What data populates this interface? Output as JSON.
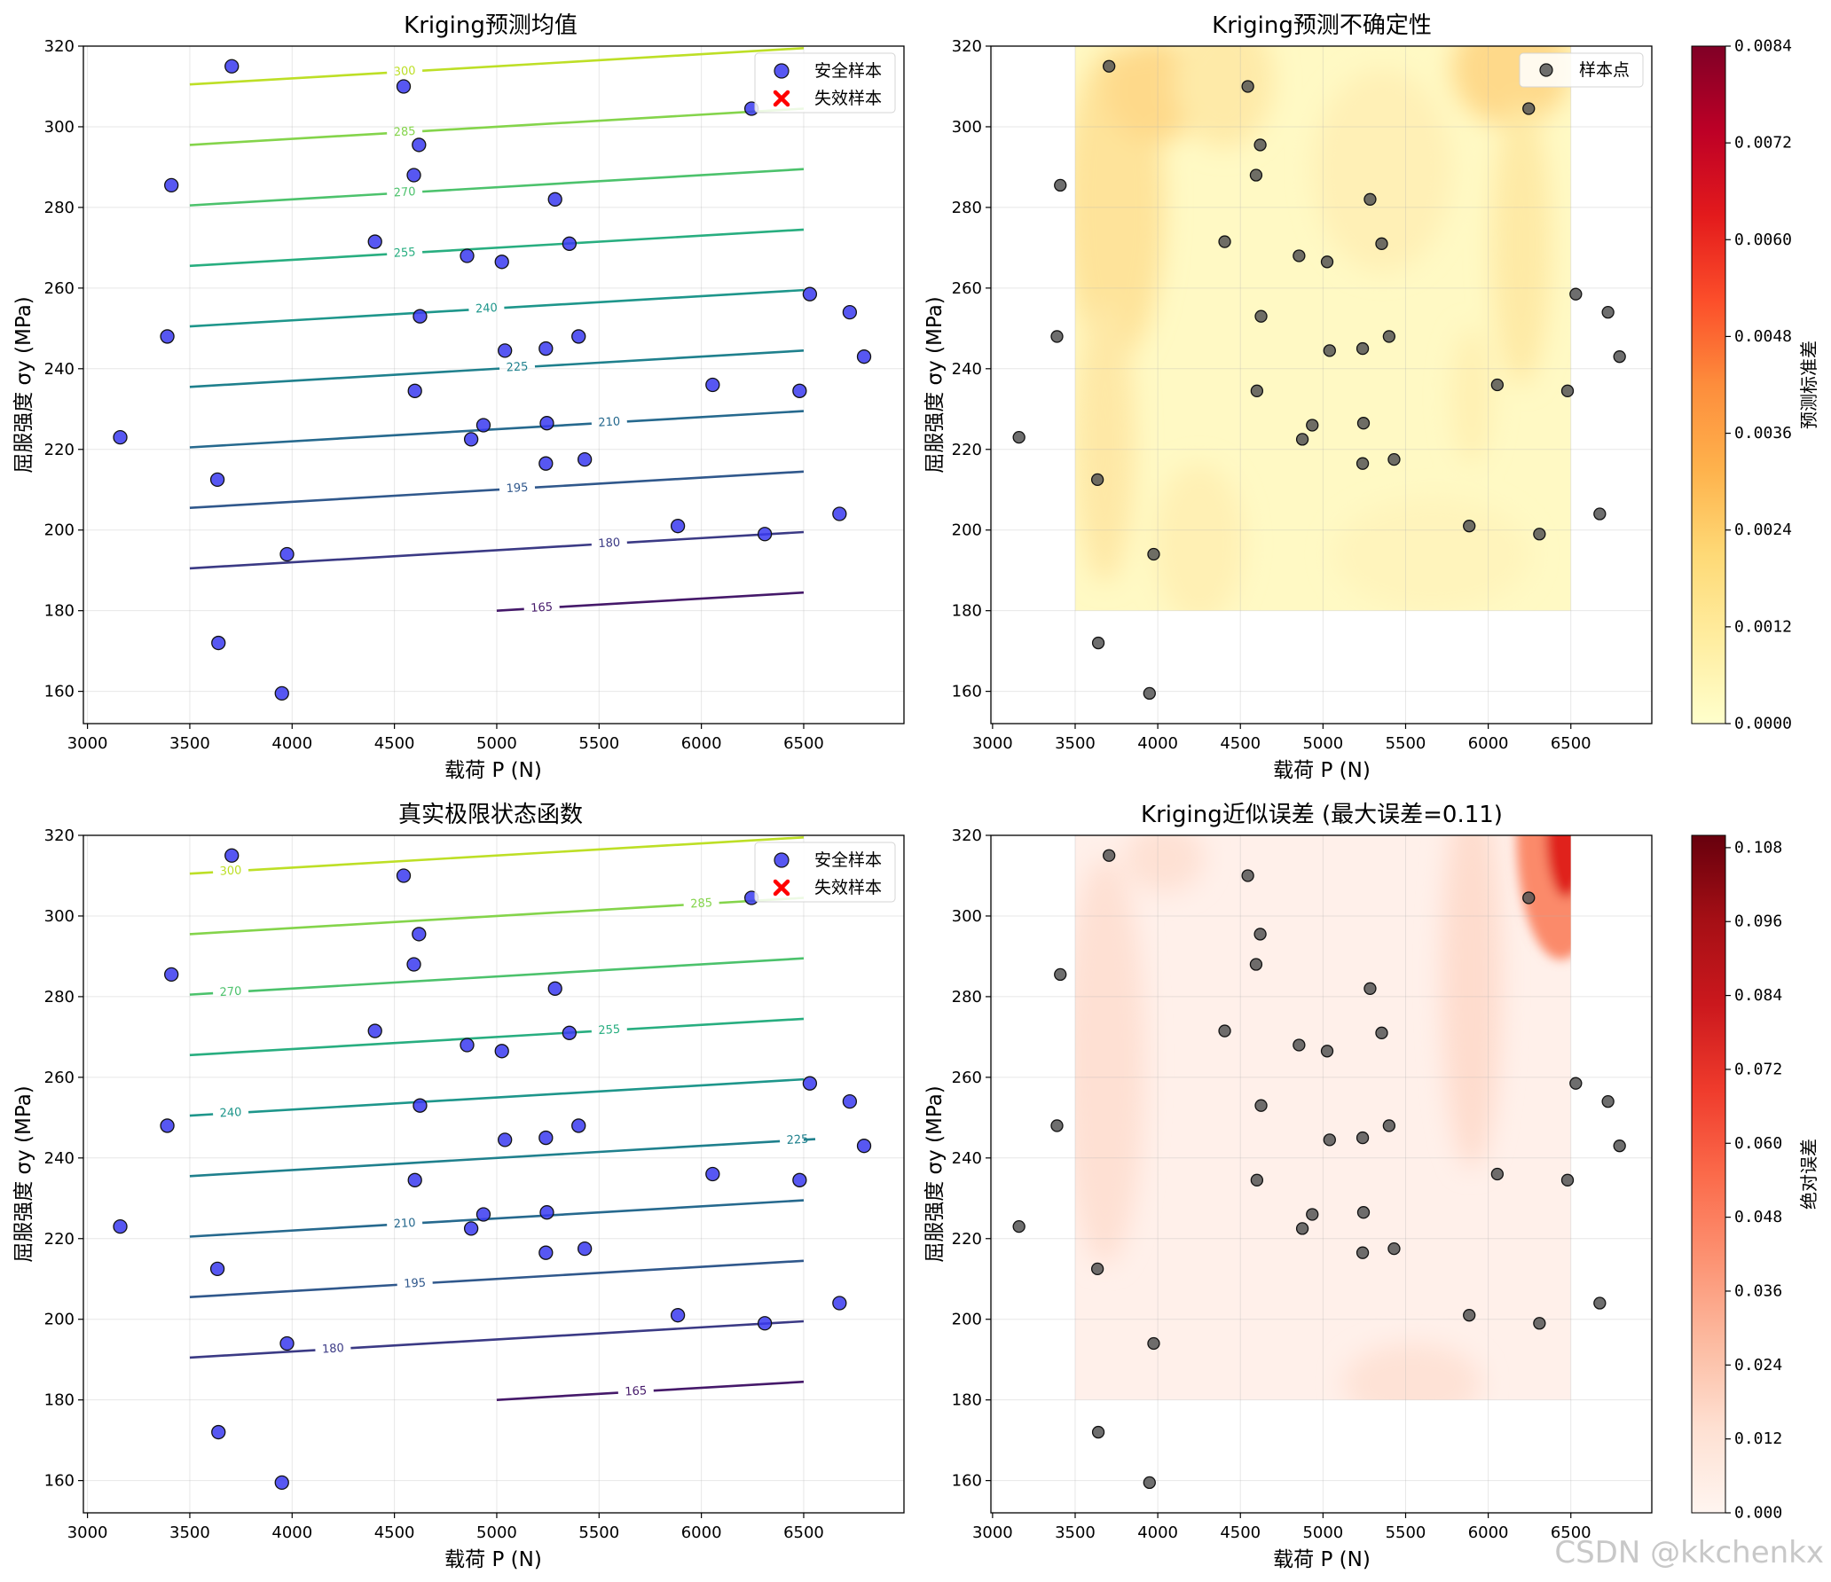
{
  "watermark": "CSDN @kkchenkx",
  "chart_data": [
    {
      "id": "mean",
      "type": "contour",
      "title": "Kriging预测均值",
      "xlabel": "载荷 P (N)",
      "ylabel": "屈服强度 σy (MPa)",
      "xlim": [
        2980,
        6990
      ],
      "ylim": [
        152,
        320
      ],
      "xticks": [
        3000,
        3500,
        4000,
        4500,
        5000,
        5500,
        6000,
        6500
      ],
      "yticks": [
        160,
        180,
        200,
        220,
        240,
        260,
        280,
        300,
        320
      ],
      "grid": true,
      "legend": {
        "placement": "top-right",
        "entries": [
          "安全样本",
          "失效样本"
        ]
      },
      "contour_levels": [
        {
          "level": 165,
          "color": "#45196a",
          "x": [
            5000,
            6500
          ],
          "y": [
            180,
            184.5
          ],
          "label_x": 5220
        },
        {
          "level": 180,
          "color": "#3b3a85",
          "x": [
            3500,
            6500
          ],
          "y": [
            190.5,
            199.5
          ],
          "label_x": 5550
        },
        {
          "level": 195,
          "color": "#30588c",
          "x": [
            3500,
            6500
          ],
          "y": [
            205.5,
            214.5
          ],
          "label_x": 5100
        },
        {
          "level": 210,
          "color": "#26698e",
          "x": [
            3500,
            6500
          ],
          "y": [
            220.5,
            229.5
          ],
          "label_x": 5550
        },
        {
          "level": 225,
          "color": "#1f808d",
          "x": [
            3500,
            6500
          ],
          "y": [
            235.5,
            244.5
          ],
          "label_x": 5100
        },
        {
          "level": 240,
          "color": "#1e968b",
          "x": [
            3500,
            6500
          ],
          "y": [
            250.5,
            259.5
          ],
          "label_x": 4950
        },
        {
          "level": 255,
          "color": "#28ae80",
          "x": [
            3500,
            6500
          ],
          "y": [
            265.5,
            274.5
          ],
          "label_x": 4550
        },
        {
          "level": 270,
          "color": "#4cc26c",
          "x": [
            3500,
            6500
          ],
          "y": [
            280.5,
            289.5
          ],
          "label_x": 4550
        },
        {
          "level": 285,
          "color": "#84d44b",
          "x": [
            3500,
            6500
          ],
          "y": [
            295.5,
            304.5
          ],
          "label_x": 4550
        },
        {
          "level": 300,
          "color": "#bddf26",
          "x": [
            3500,
            6500
          ],
          "y": [
            310.5,
            319.5
          ],
          "label_x": 4550
        }
      ]
    },
    {
      "id": "std",
      "type": "contourf",
      "title": "Kriging预测不确定性",
      "xlabel": "载荷 P (N)",
      "ylabel": "屈服强度 σy (MPa)",
      "xlim": [
        2990,
        6990
      ],
      "ylim": [
        152,
        320
      ],
      "xticks": [
        3000,
        3500,
        4000,
        4500,
        5000,
        5500,
        6000,
        6500
      ],
      "yticks": [
        160,
        180,
        200,
        220,
        240,
        260,
        280,
        300,
        320
      ],
      "grid": true,
      "legend": {
        "placement": "top-right",
        "entries": [
          "样本点"
        ]
      },
      "field_region": {
        "x": [
          3500,
          6500
        ],
        "y": [
          180,
          320
        ]
      },
      "colorbar": {
        "label": "预测标准差",
        "min": 0,
        "max": 0.0084,
        "ticks": [
          "0.0000",
          "0.0012",
          "0.0024",
          "0.0036",
          "0.0048",
          "0.0060",
          "0.0072",
          "0.0084"
        ],
        "colormap": "YlOrRd"
      }
    },
    {
      "id": "true",
      "type": "contour",
      "title": "真实极限状态函数",
      "xlabel": "载荷 P (N)",
      "ylabel": "屈服强度 σy (MPa)",
      "xlim": [
        2980,
        6990
      ],
      "ylim": [
        152,
        320
      ],
      "xticks": [
        3000,
        3500,
        4000,
        4500,
        5000,
        5500,
        6000,
        6500
      ],
      "yticks": [
        160,
        180,
        200,
        220,
        240,
        260,
        280,
        300,
        320
      ],
      "grid": true,
      "legend": {
        "placement": "top-right",
        "entries": [
          "安全样本",
          "失效样本"
        ]
      },
      "contour_levels": [
        {
          "level": 165,
          "color": "#45196a",
          "x": [
            5000,
            6500
          ],
          "y": [
            180,
            184.5
          ],
          "label_x": 5680
        },
        {
          "level": 180,
          "color": "#3b3a85",
          "x": [
            3500,
            6500
          ],
          "y": [
            190.5,
            199.5
          ],
          "label_x": 4200
        },
        {
          "level": 195,
          "color": "#30588c",
          "x": [
            3500,
            6500
          ],
          "y": [
            205.5,
            214.5
          ],
          "label_x": 4600
        },
        {
          "level": 210,
          "color": "#26698e",
          "x": [
            3500,
            6500
          ],
          "y": [
            220.5,
            229.5
          ],
          "label_x": 4550
        },
        {
          "level": 225,
          "color": "#1f808d",
          "x": [
            3500,
            6500
          ],
          "y": [
            235.5,
            244.5
          ],
          "label_x": 6470
        },
        {
          "level": 240,
          "color": "#1e968b",
          "x": [
            3500,
            6500
          ],
          "y": [
            250.5,
            259.5
          ],
          "label_x": 3700
        },
        {
          "level": 255,
          "color": "#28ae80",
          "x": [
            3500,
            6500
          ],
          "y": [
            265.5,
            274.5
          ],
          "label_x": 5550
        },
        {
          "level": 270,
          "color": "#4cc26c",
          "x": [
            3500,
            6500
          ],
          "y": [
            280.5,
            289.5
          ],
          "label_x": 3700
        },
        {
          "level": 285,
          "color": "#84d44b",
          "x": [
            3500,
            6500
          ],
          "y": [
            295.5,
            304.5
          ],
          "label_x": 6000
        },
        {
          "level": 300,
          "color": "#bddf26",
          "x": [
            3500,
            6500
          ],
          "y": [
            310.5,
            319.5
          ],
          "label_x": 3700
        }
      ]
    },
    {
      "id": "err",
      "type": "contourf",
      "title": "Kriging近似误差 (最大误差=0.11)",
      "xlabel": "载荷 P (N)",
      "ylabel": "屈服强度 σy (MPa)",
      "xlim": [
        2990,
        6990
      ],
      "ylim": [
        152,
        320
      ],
      "xticks": [
        3000,
        3500,
        4000,
        4500,
        5000,
        5500,
        6000,
        6500
      ],
      "yticks": [
        160,
        180,
        200,
        220,
        240,
        260,
        280,
        300,
        320
      ],
      "grid": true,
      "field_region": {
        "x": [
          3500,
          6500
        ],
        "y": [
          180,
          320
        ]
      },
      "colorbar": {
        "label": "绝对误差",
        "min": 0,
        "max": 0.11,
        "ticks": [
          "0.000",
          "0.012",
          "0.024",
          "0.036",
          "0.048",
          "0.060",
          "0.072",
          "0.084",
          "0.096",
          "0.108"
        ],
        "tick_values": [
          0,
          0.012,
          0.024,
          0.036,
          0.048,
          0.06,
          0.072,
          0.084,
          0.096,
          0.108
        ],
        "colormap": "Reds"
      }
    }
  ],
  "samples": {
    "legend_safe": "安全样本",
    "legend_fail": "失效样本",
    "legend_points": "样本点",
    "points": [
      [
        3705,
        315
      ],
      [
        4545,
        310
      ],
      [
        6245,
        304.5
      ],
      [
        4620,
        295.5
      ],
      [
        3410,
        285.5
      ],
      [
        4595,
        288
      ],
      [
        5285,
        282
      ],
      [
        4405,
        271.5
      ],
      [
        5355,
        271
      ],
      [
        4855,
        268
      ],
      [
        5025,
        266.5
      ],
      [
        6530,
        258.5
      ],
      [
        4625,
        253
      ],
      [
        6725,
        254
      ],
      [
        3390,
        248
      ],
      [
        5400,
        248
      ],
      [
        5240,
        245
      ],
      [
        5040,
        244.5
      ],
      [
        6795,
        243
      ],
      [
        6055,
        236
      ],
      [
        6480,
        234.5
      ],
      [
        4600,
        234.5
      ],
      [
        5245,
        226.5
      ],
      [
        4935,
        226
      ],
      [
        3160,
        223
      ],
      [
        4875,
        222.5
      ],
      [
        5430,
        217.5
      ],
      [
        5240,
        216.5
      ],
      [
        3635,
        212.5
      ],
      [
        5885,
        201
      ],
      [
        6675,
        204
      ],
      [
        6310,
        199
      ],
      [
        3975,
        194
      ],
      [
        3640,
        172
      ],
      [
        3950,
        159.5
      ]
    ]
  }
}
